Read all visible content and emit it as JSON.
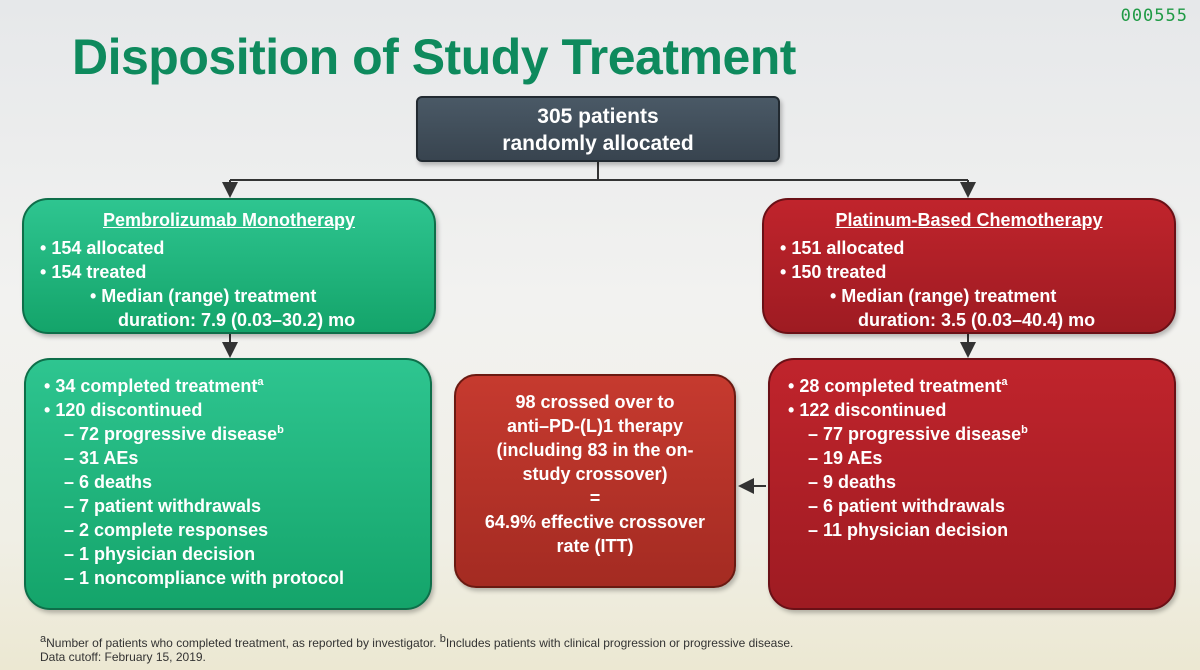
{
  "slide_id": "000555",
  "title": "Disposition of Study Treatment",
  "top": {
    "line1": "305 patients",
    "line2": "randomly allocated"
  },
  "left_arm": {
    "heading": "Pembrolizumab Monotherapy",
    "allocated": "154 allocated",
    "treated": "154 treated",
    "median_line1": "• Median (range) treatment",
    "median_line2": "duration: 7.9 (0.03–30.2) mo"
  },
  "right_arm": {
    "heading": "Platinum-Based Chemotherapy",
    "allocated": "151 allocated",
    "treated": "150 treated",
    "median_line1": "• Median (range) treatment",
    "median_line2": "duration: 3.5 (0.03–40.4) mo"
  },
  "left_outcome": {
    "completed": "34 completed treatment",
    "completed_sup": "a",
    "discontinued": "120 discontinued",
    "reasons": [
      "72 progressive disease",
      "31 AEs",
      "6 deaths",
      "7 patient withdrawals",
      "2 complete responses",
      "1 physician decision",
      "1 noncompliance with protocol"
    ],
    "pd_sup": "b"
  },
  "right_outcome": {
    "completed": "28 completed treatment",
    "completed_sup": "a",
    "discontinued": "122 discontinued",
    "reasons": [
      "77 progressive disease",
      "19 AEs",
      "9 deaths",
      "6 patient withdrawals",
      "11 physician decision"
    ],
    "pd_sup": "b"
  },
  "crossover": {
    "lines": [
      "98 crossed over to",
      "anti–PD-(L)1 therapy",
      "(including 83 in the on-",
      "study crossover)",
      "=",
      "64.9% effective crossover",
      "rate (ITT)"
    ]
  },
  "footnote": {
    "a_mark": "a",
    "a_text": "Number of patients who completed treatment, as reported by investigator.",
    "b_mark": "b",
    "b_text": "Includes patients with clinical progression or progressive disease.",
    "cutoff": "Data cutoff: February 15, 2019."
  },
  "colors": {
    "title": "#0e8a5d",
    "green_box": "#1fb47c",
    "red_box": "#b0202a",
    "top_box": "#3f4b56"
  }
}
